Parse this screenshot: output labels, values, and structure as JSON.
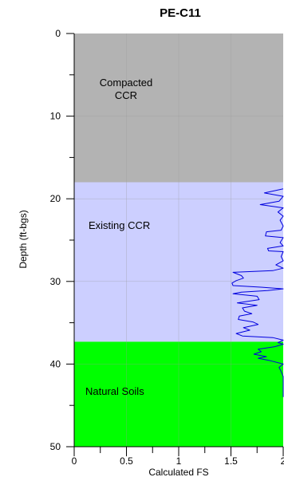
{
  "chart_data": {
    "type": "line",
    "title": "PE-C11",
    "xlabel": "Calculated FS",
    "ylabel": "Depth (ft-bgs)",
    "xlim": [
      0,
      2
    ],
    "ylim": [
      0,
      50
    ],
    "y_inverted": true,
    "x_ticks": [
      "0",
      "0.5",
      "1",
      "1.5",
      "2"
    ],
    "y_ticks": [
      "0",
      "10",
      "20",
      "30",
      "40",
      "50"
    ],
    "grid": true,
    "zones": [
      {
        "name": "Compacted CCR",
        "label_lines": [
          "Compacted",
          "CCR"
        ],
        "top": 0,
        "bottom": 18,
        "color": "#b3b3b3"
      },
      {
        "name": "Existing CCR",
        "label_lines": [
          "Existing CCR"
        ],
        "top": 18,
        "bottom": 37.3,
        "color": "#cccfff"
      },
      {
        "name": "Natural Soils",
        "label_lines": [
          "Natural Soils"
        ],
        "top": 37.3,
        "bottom": 50,
        "color": "#00ff00"
      }
    ],
    "series": [
      {
        "color": "#0000dd",
        "points": [
          [
            2.0,
            18.8
          ],
          [
            1.82,
            19.3
          ],
          [
            2.0,
            19.7
          ],
          [
            1.96,
            20.3
          ],
          [
            1.78,
            20.7
          ],
          [
            2.0,
            21.1
          ],
          [
            1.95,
            21.6
          ],
          [
            2.0,
            22.1
          ],
          [
            1.97,
            22.6
          ],
          [
            2.0,
            23.3
          ],
          [
            1.98,
            23.8
          ],
          [
            1.84,
            24.0
          ],
          [
            1.83,
            24.5
          ],
          [
            2.0,
            24.7
          ],
          [
            1.97,
            25.3
          ],
          [
            2.0,
            25.7
          ],
          [
            1.85,
            26.0
          ],
          [
            1.86,
            26.3
          ],
          [
            2.0,
            26.4
          ],
          [
            1.98,
            27.0
          ],
          [
            2.0,
            27.5
          ],
          [
            1.93,
            28.0
          ],
          [
            2.0,
            28.4
          ],
          [
            1.9,
            28.7
          ],
          [
            1.52,
            28.9
          ],
          [
            1.6,
            29.3
          ],
          [
            1.62,
            29.6
          ],
          [
            1.55,
            29.9
          ],
          [
            1.51,
            30.2
          ],
          [
            1.52,
            30.5
          ],
          [
            1.8,
            30.7
          ],
          [
            2.0,
            30.9
          ],
          [
            1.85,
            31.1
          ],
          [
            1.6,
            31.3
          ],
          [
            1.52,
            31.5
          ],
          [
            1.75,
            31.8
          ],
          [
            1.77,
            32.2
          ],
          [
            1.56,
            32.6
          ],
          [
            1.75,
            32.9
          ],
          [
            1.61,
            33.2
          ],
          [
            1.63,
            33.6
          ],
          [
            1.7,
            33.9
          ],
          [
            1.58,
            34.2
          ],
          [
            1.57,
            34.6
          ],
          [
            1.71,
            34.9
          ],
          [
            1.76,
            35.2
          ],
          [
            1.62,
            35.6
          ],
          [
            1.68,
            35.9
          ],
          [
            1.55,
            36.3
          ],
          [
            1.61,
            36.6
          ],
          [
            1.9,
            36.8
          ],
          [
            2.0,
            37.1
          ],
          [
            1.95,
            37.4
          ],
          [
            2.0,
            37.6
          ],
          [
            1.92,
            37.9
          ],
          [
            1.76,
            38.2
          ],
          [
            1.79,
            38.5
          ],
          [
            1.72,
            38.8
          ],
          [
            1.84,
            39.1
          ],
          [
            1.76,
            39.3
          ],
          [
            1.88,
            39.6
          ],
          [
            2.0,
            40.0
          ],
          [
            1.96,
            40.4
          ],
          [
            1.98,
            40.9
          ],
          [
            2.0,
            41.5
          ],
          [
            2.0,
            44.0
          ]
        ]
      }
    ]
  }
}
